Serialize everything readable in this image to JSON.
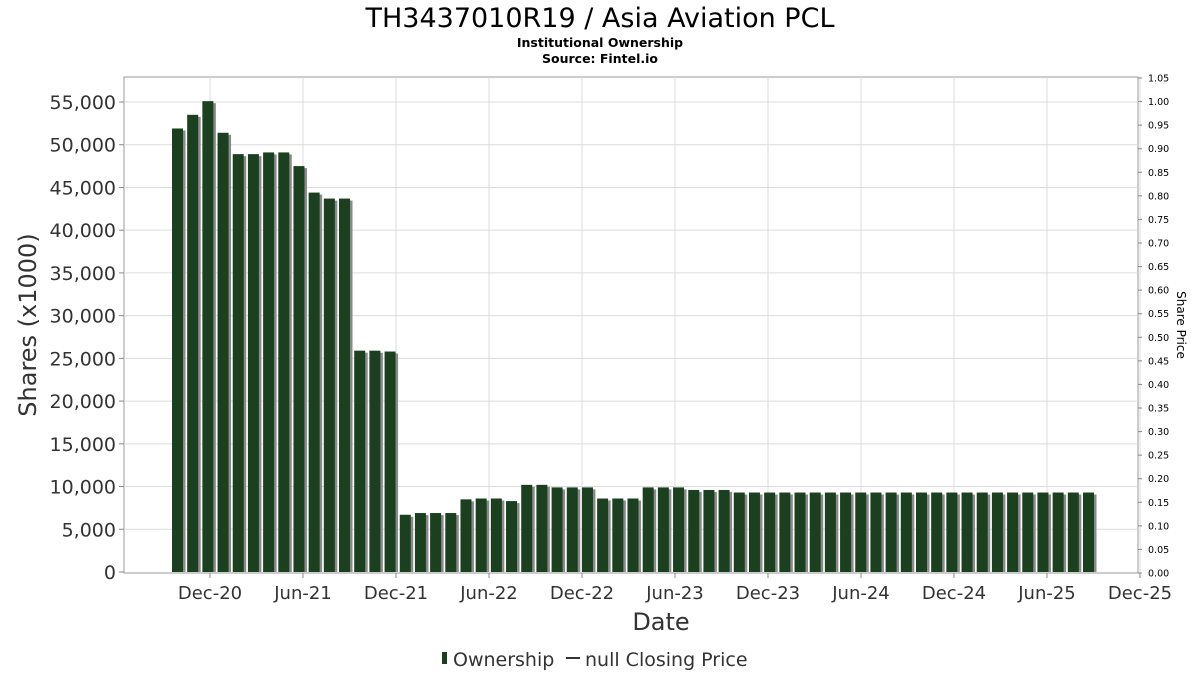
{
  "chart_data": {
    "type": "bar",
    "title": "TH3437010R19 / Asia Aviation PCL",
    "subtitle_1": "Institutional Ownership",
    "subtitle_2": "Source: Fintel.io",
    "xlabel": "Date",
    "ylabel": "Shares (x1000)",
    "y2label": "Share Price",
    "ylim": [
      0,
      58000
    ],
    "y_ticks": [
      "0",
      "5,000",
      "10,000",
      "15,000",
      "20,000",
      "25,000",
      "30,000",
      "35,000",
      "40,000",
      "45,000",
      "50,000",
      "55,000"
    ],
    "y2lim": [
      0,
      1.05
    ],
    "y2_ticks": [
      "0.00",
      "0.05",
      "0.10",
      "0.15",
      "0.20",
      "0.25",
      "0.30",
      "0.35",
      "0.40",
      "0.45",
      "0.50",
      "0.55",
      "0.60",
      "0.65",
      "0.70",
      "0.75",
      "0.80",
      "0.85",
      "0.90",
      "0.95",
      "1.00",
      "1.05"
    ],
    "x_ticks": [
      "Dec-20",
      "Jun-21",
      "Dec-21",
      "Jun-22",
      "Dec-22",
      "Jun-23",
      "Dec-23",
      "Jun-24",
      "Dec-24",
      "Jun-25",
      "Dec-25"
    ],
    "grid": true,
    "legend_position": "bottom-center",
    "series": [
      {
        "name": "Ownership",
        "color": "#1a4020",
        "values": [
          51900,
          53500,
          55100,
          51400,
          48900,
          48900,
          49100,
          49100,
          47500,
          44400,
          43700,
          43700,
          25900,
          25900,
          25800,
          6700,
          6900,
          6900,
          6900,
          8500,
          8600,
          8600,
          8300,
          10200,
          10200,
          9900,
          9900,
          9900,
          8600,
          8600,
          8600,
          9900,
          9900,
          9900,
          9600,
          9600,
          9600,
          9300,
          9300,
          9300,
          9300,
          9300,
          9300,
          9300,
          9300,
          9300,
          9300,
          9300,
          9300,
          9300,
          9300,
          9300,
          9300,
          9300,
          9300,
          9300,
          9300,
          9300,
          9300,
          9300,
          9300
        ]
      }
    ],
    "legend": {
      "ownership_label": "Ownership",
      "price_label": "null Closing Price"
    }
  }
}
